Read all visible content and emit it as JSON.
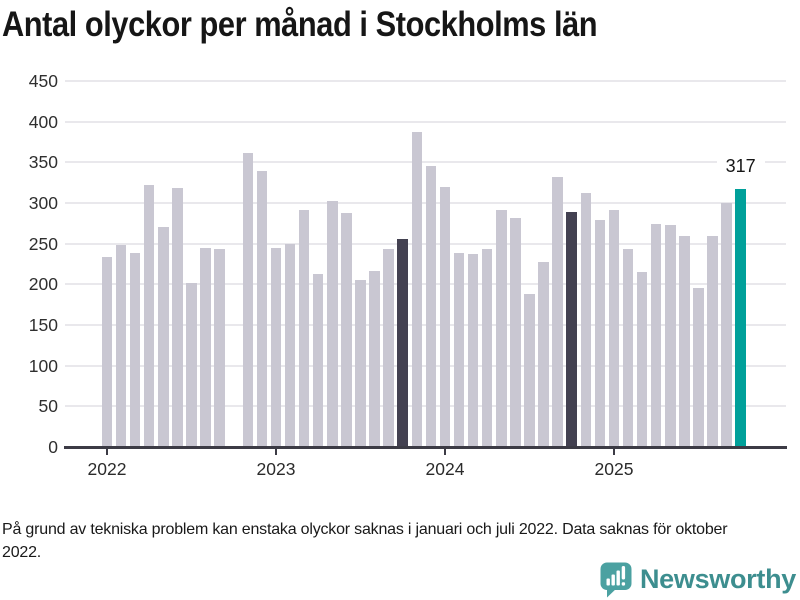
{
  "title": "Antal olyckor per månad i Stockholms län",
  "footnote": "På grund av tekniska problem kan enstaka olyckor saknas i januari och juli 2022. Data saknas för oktober 2022.",
  "logo": {
    "wordmark": "Newsworthy",
    "icon": "newsworthy-speech-bubble-bar-chart-icon"
  },
  "colors": {
    "bar_default": "#c9c7d2",
    "bar_highlight": "#434151",
    "bar_accent": "#00a09a",
    "axis_line": "#3c3b45",
    "gridline": "#e9e8ec",
    "tick_label": "#2f2f2f",
    "title_text": "#161616",
    "logo_icon": "#4ba1a1",
    "logo_text": "#3d8e8f"
  },
  "chart_data": {
    "type": "bar",
    "title": "Antal olyckor per månad i Stockholms län",
    "xlabel": "",
    "ylabel": "",
    "ylim": [
      0,
      450
    ],
    "yticks": [
      0,
      50,
      100,
      150,
      200,
      250,
      300,
      350,
      400,
      450
    ],
    "grid": true,
    "legend": false,
    "x_year_ticks": [
      {
        "label": "2022",
        "month_index": 0
      },
      {
        "label": "2023",
        "month_index": 12
      },
      {
        "label": "2024",
        "month_index": 24
      },
      {
        "label": "2025",
        "month_index": 36
      }
    ],
    "missing_months": [
      "2022-10"
    ],
    "annotation": {
      "text": "317",
      "month": "2025-10"
    },
    "bars": [
      {
        "m": "2022-01",
        "v": 234,
        "k": "default"
      },
      {
        "m": "2022-02",
        "v": 249,
        "k": "default"
      },
      {
        "m": "2022-03",
        "v": 239,
        "k": "default"
      },
      {
        "m": "2022-04",
        "v": 322,
        "k": "default"
      },
      {
        "m": "2022-05",
        "v": 271,
        "k": "default"
      },
      {
        "m": "2022-06",
        "v": 319,
        "k": "default"
      },
      {
        "m": "2022-07",
        "v": 202,
        "k": "default"
      },
      {
        "m": "2022-08",
        "v": 245,
        "k": "default"
      },
      {
        "m": "2022-09",
        "v": 244,
        "k": "default"
      },
      {
        "m": "2022-10",
        "v": null,
        "k": "missing"
      },
      {
        "m": "2022-11",
        "v": 362,
        "k": "default"
      },
      {
        "m": "2022-12",
        "v": 340,
        "k": "default"
      },
      {
        "m": "2023-01",
        "v": 245,
        "k": "default"
      },
      {
        "m": "2023-02",
        "v": 250,
        "k": "default"
      },
      {
        "m": "2023-03",
        "v": 292,
        "k": "default"
      },
      {
        "m": "2023-04",
        "v": 213,
        "k": "default"
      },
      {
        "m": "2023-05",
        "v": 302,
        "k": "default"
      },
      {
        "m": "2023-06",
        "v": 288,
        "k": "default"
      },
      {
        "m": "2023-07",
        "v": 205,
        "k": "default"
      },
      {
        "m": "2023-08",
        "v": 217,
        "k": "default"
      },
      {
        "m": "2023-09",
        "v": 244,
        "k": "default"
      },
      {
        "m": "2023-10",
        "v": 256,
        "k": "highlight"
      },
      {
        "m": "2023-11",
        "v": 387,
        "k": "default"
      },
      {
        "m": "2023-12",
        "v": 346,
        "k": "default"
      },
      {
        "m": "2024-01",
        "v": 320,
        "k": "default"
      },
      {
        "m": "2024-02",
        "v": 238,
        "k": "default"
      },
      {
        "m": "2024-03",
        "v": 237,
        "k": "default"
      },
      {
        "m": "2024-04",
        "v": 244,
        "k": "default"
      },
      {
        "m": "2024-05",
        "v": 291,
        "k": "default"
      },
      {
        "m": "2024-06",
        "v": 282,
        "k": "default"
      },
      {
        "m": "2024-07",
        "v": 188,
        "k": "default"
      },
      {
        "m": "2024-08",
        "v": 227,
        "k": "default"
      },
      {
        "m": "2024-09",
        "v": 332,
        "k": "default"
      },
      {
        "m": "2024-10",
        "v": 289,
        "k": "highlight"
      },
      {
        "m": "2024-11",
        "v": 312,
        "k": "default"
      },
      {
        "m": "2024-12",
        "v": 279,
        "k": "default"
      },
      {
        "m": "2025-01",
        "v": 292,
        "k": "default"
      },
      {
        "m": "2025-02",
        "v": 244,
        "k": "default"
      },
      {
        "m": "2025-03",
        "v": 215,
        "k": "default"
      },
      {
        "m": "2025-04",
        "v": 274,
        "k": "default"
      },
      {
        "m": "2025-05",
        "v": 273,
        "k": "default"
      },
      {
        "m": "2025-06",
        "v": 260,
        "k": "default"
      },
      {
        "m": "2025-07",
        "v": 196,
        "k": "default"
      },
      {
        "m": "2025-08",
        "v": 259,
        "k": "default"
      },
      {
        "m": "2025-09",
        "v": 300,
        "k": "default"
      },
      {
        "m": "2025-10",
        "v": 317,
        "k": "accent"
      }
    ]
  }
}
